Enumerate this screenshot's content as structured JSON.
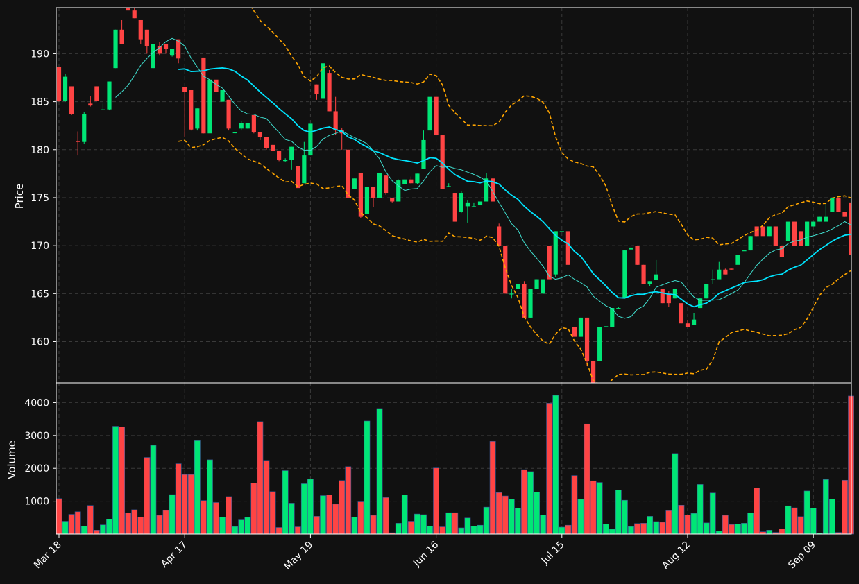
{
  "chart_data": {
    "type": "candlestick",
    "colors": {
      "background": "#111111",
      "up": "#00e676",
      "down": "#ff4444",
      "bollinger": "#ffa500",
      "ma_fast": "#40e0d0",
      "ma_slow": "#00e5ff",
      "grid": "#3a3a3a",
      "frame": "#ffffff"
    },
    "price_panel": {
      "ylabel": "Price",
      "ylim": [
        155.7,
        194.8
      ],
      "yticks": [
        160,
        165,
        170,
        175,
        180,
        185,
        190
      ]
    },
    "volume_panel": {
      "ylabel": "Volume",
      "ylim": [
        0,
        4600
      ],
      "yticks": [
        1000,
        2000,
        3000,
        4000
      ]
    },
    "xaxis": {
      "tick_labels": [
        "Mar 18",
        "Apr 17",
        "May 19",
        "Jun 16",
        "Jul 15",
        "Aug 12",
        "Sep 09"
      ],
      "tick_indices": [
        0,
        20,
        40,
        60,
        80,
        100,
        120
      ],
      "n_bars": 127
    },
    "bars": [
      [
        188.6,
        188.6,
        185.0,
        185.1,
        1080
      ],
      [
        185.1,
        187.9,
        185.0,
        187.6,
        390
      ],
      [
        186.6,
        186.6,
        183.6,
        183.7,
        600
      ],
      [
        180.9,
        181.9,
        179.4,
        180.8,
        680
      ],
      [
        180.8,
        183.9,
        180.6,
        183.7,
        240
      ],
      [
        184.8,
        185.6,
        184.5,
        184.6,
        870
      ],
      [
        186.6,
        186.6,
        185.1,
        185.1,
        120
      ],
      [
        184.2,
        184.8,
        184.1,
        184.2,
        280
      ],
      [
        184.2,
        187.1,
        184.1,
        187.1,
        450
      ],
      [
        188.5,
        192.5,
        188.5,
        192.5,
        3280
      ],
      [
        192.5,
        193.5,
        191.0,
        191.0,
        3260
      ],
      [
        195.2,
        196.2,
        194.5,
        194.5,
        640
      ],
      [
        194.5,
        194.9,
        193.7,
        193.7,
        740
      ],
      [
        193.5,
        193.5,
        191.0,
        191.5,
        520
      ],
      [
        192.5,
        192.5,
        190.0,
        190.8,
        2330
      ],
      [
        188.5,
        191.0,
        188.5,
        191.0,
        2700
      ],
      [
        190.8,
        191.2,
        189.8,
        190.0,
        570
      ],
      [
        191.0,
        191.0,
        190.0,
        190.5,
        720
      ],
      [
        189.8,
        190.5,
        189.7,
        190.5,
        1200
      ],
      [
        191.5,
        191.5,
        189.0,
        189.5,
        2140
      ],
      [
        186.5,
        186.5,
        181.3,
        186.0,
        1810
      ],
      [
        186.2,
        186.2,
        182.0,
        182.1,
        1810
      ],
      [
        182.2,
        184.3,
        182.0,
        184.3,
        2840
      ],
      [
        189.6,
        189.6,
        181.7,
        181.7,
        1020
      ],
      [
        181.7,
        187.3,
        181.7,
        187.3,
        2260
      ],
      [
        187.3,
        187.3,
        185.5,
        186.0,
        960
      ],
      [
        185.0,
        186.2,
        185.0,
        186.2,
        520
      ],
      [
        185.2,
        185.2,
        182.0,
        182.2,
        1140
      ],
      [
        181.8,
        181.8,
        181.7,
        181.8,
        230
      ],
      [
        182.2,
        183.0,
        182.0,
        182.8,
        430
      ],
      [
        182.2,
        182.8,
        182.2,
        182.8,
        510
      ],
      [
        183.6,
        183.6,
        181.7,
        181.8,
        1550
      ],
      [
        181.8,
        181.8,
        181.0,
        181.3,
        3420
      ],
      [
        181.3,
        181.3,
        180.0,
        180.2,
        2240
      ],
      [
        180.5,
        180.5,
        179.9,
        179.9,
        1290
      ],
      [
        179.9,
        179.9,
        178.8,
        178.9,
        200
      ],
      [
        178.9,
        179.1,
        178.7,
        178.9,
        1930
      ],
      [
        178.9,
        180.3,
        177.9,
        180.3,
        940
      ],
      [
        178.3,
        178.3,
        176.0,
        176.0,
        220
      ],
      [
        176.5,
        180.8,
        176.5,
        179.4,
        1530
      ],
      [
        179.4,
        182.7,
        179.4,
        182.7,
        1670
      ],
      [
        186.8,
        186.8,
        185.2,
        185.8,
        540
      ],
      [
        185.3,
        189.0,
        185.2,
        189.0,
        1170
      ],
      [
        188.0,
        188.3,
        184.0,
        184.0,
        1190
      ],
      [
        184.0,
        185.5,
        181.5,
        182.0,
        910
      ],
      [
        182.0,
        182.3,
        180.0,
        181.7,
        1630
      ],
      [
        180.0,
        180.0,
        175.0,
        175.0,
        2050
      ],
      [
        175.9,
        177.0,
        175.9,
        177.0,
        520
      ],
      [
        177.6,
        177.6,
        172.9,
        173.0,
        980
      ],
      [
        173.3,
        176.1,
        173.3,
        176.1,
        3440
      ],
      [
        176.1,
        176.1,
        174.0,
        175.0,
        570
      ],
      [
        175.0,
        177.6,
        175.0,
        177.6,
        3820
      ],
      [
        177.3,
        177.3,
        175.3,
        175.5,
        1110
      ],
      [
        175.0,
        175.0,
        174.5,
        174.6,
        40
      ],
      [
        174.6,
        176.9,
        174.6,
        176.8,
        330
      ],
      [
        176.4,
        176.9,
        176.4,
        176.9,
        1190
      ],
      [
        176.9,
        177.2,
        176.4,
        176.5,
        390
      ],
      [
        176.5,
        177.5,
        176.4,
        177.5,
        610
      ],
      [
        178.0,
        182.0,
        178.0,
        181.0,
        590
      ],
      [
        182.0,
        185.5,
        181.5,
        185.5,
        240
      ],
      [
        185.5,
        185.5,
        181.5,
        181.5,
        2010
      ],
      [
        181.5,
        181.5,
        175.9,
        175.9,
        220
      ],
      [
        176.1,
        176.5,
        176.1,
        176.2,
        650
      ],
      [
        175.5,
        175.5,
        172.5,
        172.5,
        650
      ],
      [
        173.5,
        175.7,
        173.4,
        175.5,
        190
      ],
      [
        174.1,
        174.7,
        172.4,
        174.5,
        490
      ],
      [
        174.1,
        174.5,
        174.1,
        174.1,
        240
      ],
      [
        174.2,
        174.6,
        174.2,
        174.6,
        270
      ],
      [
        174.6,
        177.6,
        174.6,
        177.0,
        820
      ],
      [
        177.0,
        177.0,
        174.6,
        174.6,
        2820
      ],
      [
        172.0,
        172.3,
        170.0,
        170.0,
        1260
      ],
      [
        170.0,
        170.0,
        165.0,
        165.0,
        1160
      ],
      [
        165.0,
        165.5,
        164.5,
        165.0,
        1060
      ],
      [
        165.5,
        166.0,
        165.5,
        166.0,
        790
      ],
      [
        166.0,
        166.3,
        162.5,
        162.5,
        1960
      ],
      [
        162.5,
        165.5,
        162.5,
        165.5,
        1900
      ],
      [
        165.5,
        166.5,
        165.5,
        166.5,
        1280
      ],
      [
        165.0,
        166.5,
        165.0,
        166.5,
        580
      ],
      [
        170.0,
        170.0,
        166.5,
        166.5,
        3980
      ],
      [
        167.0,
        171.5,
        166.7,
        171.5,
        4220
      ],
      [
        171.5,
        171.5,
        171.5,
        171.5,
        210
      ],
      [
        171.5,
        171.5,
        168.0,
        168.0,
        270
      ],
      [
        161.5,
        161.5,
        160.5,
        160.5,
        1780
      ],
      [
        160.5,
        162.5,
        160.5,
        162.5,
        1060
      ],
      [
        162.5,
        162.5,
        157.5,
        158.0,
        3350
      ],
      [
        158.0,
        158.0,
        155.7,
        155.7,
        1620
      ],
      [
        158.0,
        161.5,
        158.0,
        161.5,
        1570
      ],
      [
        161.5,
        161.6,
        161.5,
        161.6,
        310
      ],
      [
        161.5,
        163.5,
        161.5,
        163.5,
        150
      ],
      [
        163.5,
        163.6,
        163.5,
        163.5,
        1340
      ],
      [
        164.6,
        169.5,
        164.6,
        169.5,
        1030
      ],
      [
        169.6,
        170.0,
        169.6,
        169.8,
        230
      ],
      [
        170.0,
        170.0,
        168.0,
        168.0,
        320
      ],
      [
        168.0,
        168.0,
        166.0,
        166.0,
        330
      ],
      [
        166.0,
        166.3,
        165.8,
        166.3,
        540
      ],
      [
        166.4,
        168.5,
        166.4,
        167.0,
        380
      ],
      [
        165.5,
        165.5,
        164.0,
        164.0,
        360
      ],
      [
        165.0,
        165.3,
        163.6,
        164.0,
        710
      ],
      [
        164.5,
        165.5,
        164.5,
        165.5,
        2450
      ],
      [
        164.0,
        164.0,
        161.9,
        161.9,
        880
      ],
      [
        161.9,
        162.2,
        161.5,
        161.5,
        580
      ],
      [
        161.7,
        163.0,
        161.7,
        162.3,
        630
      ],
      [
        163.5,
        164.5,
        163.5,
        164.5,
        1510
      ],
      [
        164.5,
        166.0,
        164.5,
        166.0,
        340
      ],
      [
        166.5,
        167.5,
        166.0,
        166.5,
        1250
      ],
      [
        166.5,
        168.3,
        166.5,
        167.5,
        90
      ],
      [
        167.5,
        167.6,
        167.0,
        167.0,
        570
      ],
      [
        167.6,
        167.6,
        167.5,
        167.5,
        290
      ],
      [
        168.0,
        169.0,
        168.0,
        169.0,
        310
      ],
      [
        169.5,
        169.5,
        169.5,
        169.5,
        330
      ],
      [
        169.5,
        171.0,
        169.5,
        171.0,
        640
      ],
      [
        172.0,
        172.0,
        171.0,
        171.0,
        1400
      ],
      [
        172.0,
        172.0,
        171.0,
        171.0,
        70
      ],
      [
        171.0,
        172.0,
        171.0,
        172.0,
        120
      ],
      [
        172.0,
        172.0,
        170.0,
        170.0,
        50
      ],
      [
        170.0,
        170.0,
        168.8,
        168.8,
        160
      ],
      [
        170.5,
        172.0,
        170.5,
        172.5,
        860
      ],
      [
        172.5,
        172.5,
        170.0,
        170.0,
        800
      ],
      [
        171.5,
        171.5,
        170.0,
        170.0,
        530
      ],
      [
        170.0,
        172.5,
        170.0,
        172.5,
        1310
      ],
      [
        172.0,
        172.5,
        172.0,
        172.5,
        790
      ],
      [
        172.5,
        173.0,
        172.5,
        173.0,
        30
      ],
      [
        172.5,
        174.5,
        172.5,
        173.0,
        1660
      ],
      [
        173.5,
        175.0,
        173.5,
        175.0,
        1070
      ],
      [
        175.0,
        175.0,
        173.5,
        173.5,
        50
      ],
      [
        173.5,
        173.5,
        173.0,
        173.0,
        1640
      ],
      [
        174.5,
        174.5,
        169.0,
        169.0,
        4200
      ]
    ]
  }
}
